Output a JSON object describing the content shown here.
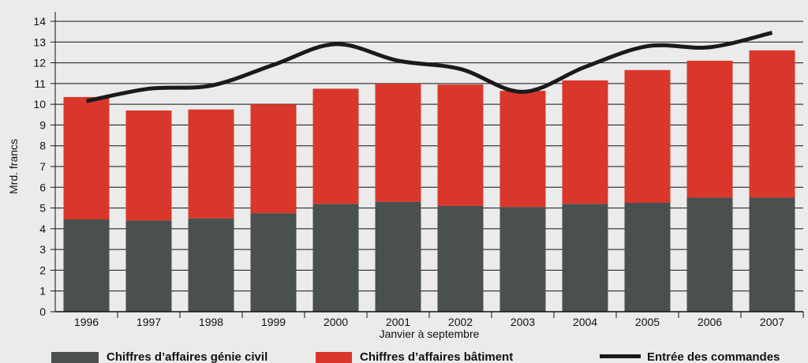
{
  "chart_data": {
    "type": "bar",
    "stacked": true,
    "y_label": "Mrd. francs",
    "x_label": "Janvier à septembre",
    "categories": [
      "1996",
      "1997",
      "1998",
      "1999",
      "2000",
      "2001",
      "2002",
      "2003",
      "2004",
      "2005",
      "2006",
      "2007"
    ],
    "series": [
      {
        "name": "Chiffres d’affaires génie civil",
        "color": "#4a4f4f",
        "type": "bar",
        "values": [
          4.45,
          4.4,
          4.5,
          4.75,
          5.2,
          5.3,
          5.1,
          5.05,
          5.2,
          5.25,
          5.5,
          5.5
        ]
      },
      {
        "name": "Chiffres d’affaires bâtiment",
        "color": "#d9372b",
        "type": "bar",
        "values": [
          5.9,
          5.3,
          5.25,
          5.25,
          5.55,
          5.7,
          5.85,
          5.6,
          5.95,
          6.4,
          6.6,
          7.1
        ]
      },
      {
        "name": "Entrée des commandes",
        "color": "#1a1a1a",
        "type": "line",
        "values": [
          10.15,
          10.75,
          10.9,
          11.9,
          12.9,
          12.1,
          11.7,
          10.6,
          11.8,
          12.8,
          12.75,
          13.45
        ]
      }
    ],
    "ylim": [
      0,
      14
    ],
    "yticks": [
      0,
      1,
      2,
      3,
      4,
      5,
      6,
      7,
      8,
      9,
      10,
      11,
      12,
      13,
      14
    ],
    "grid": true,
    "legend": "bottom"
  }
}
